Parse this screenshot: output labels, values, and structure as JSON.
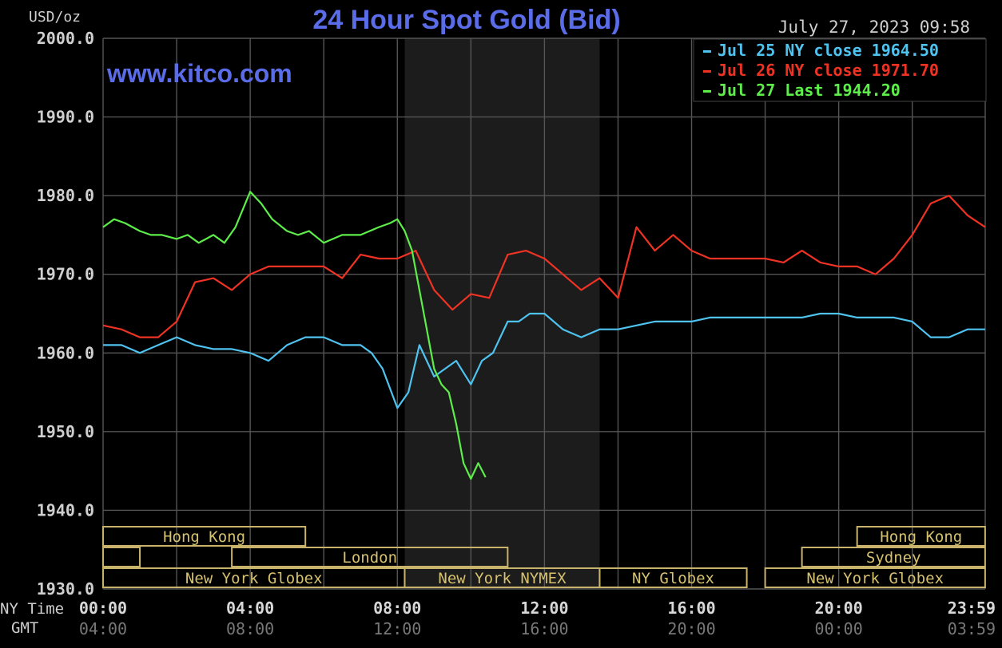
{
  "chart_data": {
    "type": "line",
    "title": "24 Hour Spot Gold (Bid)",
    "ylabel": "USD/oz",
    "watermark": "www.kitco.com",
    "timestamp": "July 27, 2023 09:58",
    "ylim": [
      1930,
      2000
    ],
    "y_ticks": [
      "2000.0",
      "1990.0",
      "1980.0",
      "1970.0",
      "1960.0",
      "1950.0",
      "1940.0",
      "1930.0"
    ],
    "x_row_labels": {
      "ny": "NY Time",
      "gmt": "GMT"
    },
    "x_ticks_ny": [
      "00:00",
      "04:00",
      "08:00",
      "12:00",
      "16:00",
      "20:00",
      "23:59"
    ],
    "x_ticks_gmt": [
      "04:00",
      "08:00",
      "12:00",
      "16:00",
      "20:00",
      "00:00",
      "03:59"
    ],
    "grid": true,
    "legend_position": "top-right",
    "colors": {
      "jul25": "#4fc3ef",
      "jul26": "#ee3324",
      "jul27": "#5dee4a",
      "title": "#5b6ce8",
      "shade": "#1c1c1c"
    },
    "series": [
      {
        "name": "Jul 25 NY close 1964.50",
        "color": "#4fc3ef",
        "x": [
          0,
          0.5,
          1,
          1.5,
          2,
          2.5,
          3,
          3.5,
          4,
          4.5,
          5,
          5.5,
          6,
          6.5,
          7,
          7.3,
          7.6,
          8,
          8.3,
          8.6,
          9,
          9.3,
          9.6,
          10,
          10.3,
          10.6,
          11,
          11.3,
          11.6,
          12,
          12.5,
          13,
          13.5,
          14,
          14.5,
          15,
          15.5,
          16,
          16.5,
          17,
          17.5,
          18,
          18.5,
          19,
          19.5,
          20,
          20.5,
          21,
          21.5,
          22,
          22.5,
          23,
          23.5,
          23.98
        ],
        "values": [
          1961,
          1961,
          1960,
          1961,
          1962,
          1961,
          1960.5,
          1960.5,
          1960,
          1959,
          1961,
          1962,
          1962,
          1961,
          1961,
          1960,
          1958,
          1953,
          1955,
          1961,
          1957,
          1958,
          1959,
          1956,
          1959,
          1960,
          1964,
          1964,
          1965,
          1965,
          1963,
          1962,
          1963,
          1963,
          1963.5,
          1964,
          1964,
          1964,
          1964.5,
          1964.5,
          1964.5,
          1964.5,
          1964.5,
          1964.5,
          1965,
          1965,
          1964.5,
          1964.5,
          1964.5,
          1964,
          1962,
          1962,
          1963,
          1963
        ]
      },
      {
        "name": "Jul 26 NY close 1971.70",
        "color": "#ee3324",
        "x": [
          0,
          0.5,
          1,
          1.5,
          2,
          2.5,
          3,
          3.5,
          4,
          4.5,
          5,
          5.5,
          6,
          6.5,
          7,
          7.5,
          8,
          8.5,
          9,
          9.5,
          10,
          10.5,
          11,
          11.5,
          12,
          12.5,
          13,
          13.5,
          14,
          14.5,
          15,
          15.5,
          16,
          16.5,
          17,
          17.5,
          18,
          18.5,
          19,
          19.5,
          20,
          20.5,
          21,
          21.5,
          22,
          22.5,
          23,
          23.5,
          23.98
        ],
        "values": [
          1963.5,
          1963,
          1962,
          1962,
          1964,
          1969,
          1969.5,
          1968,
          1970,
          1971,
          1971,
          1971,
          1971,
          1969.5,
          1972.5,
          1972,
          1972,
          1973,
          1968,
          1965.5,
          1967.5,
          1967,
          1972.5,
          1973,
          1972,
          1970,
          1968,
          1969.5,
          1967,
          1976,
          1973,
          1975,
          1973,
          1972,
          1972,
          1972,
          1972,
          1971.5,
          1973,
          1971.5,
          1971,
          1971,
          1970,
          1972,
          1975,
          1979,
          1980,
          1977.5,
          1976
        ]
      },
      {
        "name": "Jul 27 Last 1944.20",
        "color": "#5dee4a",
        "x": [
          0,
          0.3,
          0.6,
          1,
          1.3,
          1.6,
          2,
          2.3,
          2.6,
          3,
          3.3,
          3.6,
          4,
          4.3,
          4.6,
          5,
          5.3,
          5.6,
          6,
          6.5,
          7,
          7.5,
          7.8,
          8,
          8.2,
          8.4,
          8.6,
          8.8,
          9,
          9.2,
          9.4,
          9.6,
          9.8,
          10,
          10.2,
          10.4
        ],
        "values": [
          1976,
          1977,
          1976.5,
          1975.5,
          1975,
          1975,
          1974.5,
          1975,
          1974,
          1975,
          1974,
          1976,
          1980.5,
          1979,
          1977,
          1975.5,
          1975,
          1975.5,
          1974,
          1975,
          1975,
          1976,
          1976.5,
          1977,
          1975.5,
          1973,
          1968,
          1963,
          1958,
          1956,
          1955,
          1951,
          1946,
          1944,
          1946,
          1944.2
        ]
      }
    ],
    "sessions": [
      {
        "label": "Hong Kong",
        "start": 0,
        "end": 5.5,
        "row": 0
      },
      {
        "label": "Hong Kong",
        "start": 20.5,
        "end": 23.98,
        "row": 0
      },
      {
        "label": "",
        "start": 0,
        "end": 1,
        "row": 1
      },
      {
        "label": "London",
        "start": 3.5,
        "end": 11,
        "row": 1
      },
      {
        "label": "Sydney",
        "start": 19,
        "end": 23.98,
        "row": 1
      },
      {
        "label": "New York Globex",
        "start": 0,
        "end": 8.2,
        "row": 2
      },
      {
        "label": "New York NYMEX",
        "start": 8.2,
        "end": 13.5,
        "row": 2
      },
      {
        "label": "NY Globex",
        "start": 13.5,
        "end": 17.5,
        "row": 2
      },
      {
        "label": "New York Globex",
        "start": 18,
        "end": 23.98,
        "row": 2
      }
    ],
    "shaded_range": [
      8.2,
      13.5
    ]
  }
}
